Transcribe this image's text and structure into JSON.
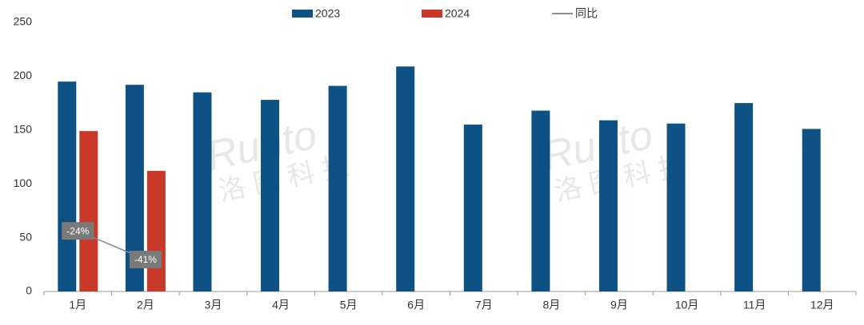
{
  "chart_data": {
    "type": "bar",
    "categories": [
      "1月",
      "2月",
      "3月",
      "4月",
      "5月",
      "6月",
      "7月",
      "8月",
      "9月",
      "10月",
      "11月",
      "12月"
    ],
    "series": [
      {
        "name": "2023",
        "color": "#0e5285",
        "values": [
          195,
          192,
          185,
          178,
          191,
          209,
          155,
          168,
          159,
          156,
          175,
          151
        ]
      },
      {
        "name": "2024",
        "color": "#c8392a",
        "values": [
          149,
          112,
          null,
          null,
          null,
          null,
          null,
          null,
          null,
          null,
          null,
          null
        ]
      },
      {
        "name": "同比",
        "color": "#8c8c8c",
        "type": "line",
        "axis": "y2",
        "values": [
          -24,
          -41,
          null,
          null,
          null,
          null,
          null,
          null,
          null,
          null,
          null,
          null
        ],
        "value_labels": [
          "-24%",
          "-41%",
          null,
          null,
          null,
          null,
          null,
          null,
          null,
          null,
          null,
          null
        ]
      }
    ],
    "ylim": [
      0,
      250
    ],
    "yticks": [
      0,
      50,
      100,
      150,
      200,
      250
    ],
    "y2lim": [
      -60,
      100
    ],
    "legend": "top",
    "watermark": [
      "Runto",
      "洛图科技"
    ]
  }
}
